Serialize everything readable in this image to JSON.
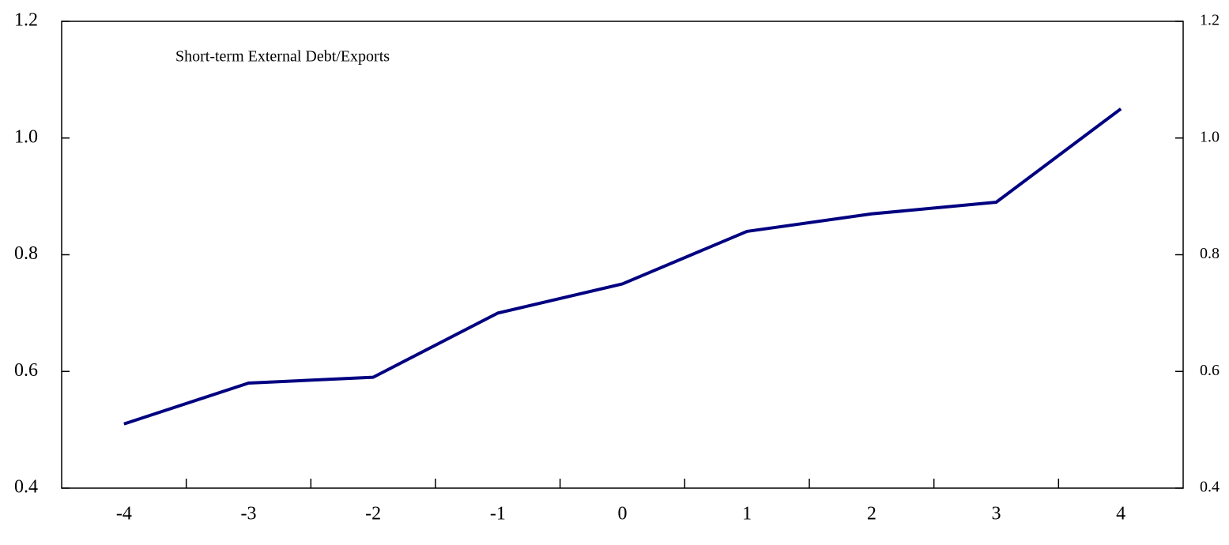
{
  "chart_data": {
    "type": "line",
    "annotation": "Short-term External Debt/Exports",
    "categories": [
      "-4",
      "-3",
      "-2",
      "-1",
      "0",
      "1",
      "2",
      "3",
      "4"
    ],
    "values": [
      0.51,
      0.58,
      0.59,
      0.7,
      0.75,
      0.84,
      0.87,
      0.89,
      1.05
    ],
    "color": "#000080",
    "ylim": [
      0.4,
      1.2
    ],
    "yticks": [
      0.4,
      0.6,
      0.8,
      {
        "value": 1.0,
        "label": "1.0"
      },
      1.2
    ],
    "y2lim": [
      0.4,
      1.2
    ],
    "y2ticks": [
      0.4,
      0.6,
      0.8,
      {
        "value": 1.0,
        "label": "1.0"
      },
      1.2
    ]
  }
}
